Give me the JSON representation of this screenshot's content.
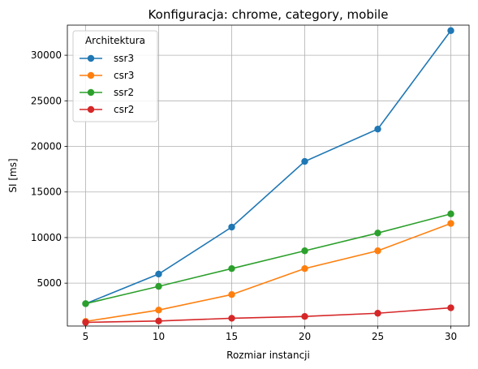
{
  "chart_data": {
    "type": "line",
    "title": "Konfiguracja: chrome, category, mobile",
    "xlabel": "Rozmiar instancji",
    "ylabel": "SI [ms]",
    "x": [
      5,
      10,
      15,
      20,
      25,
      30
    ],
    "xticks": [
      5,
      10,
      15,
      20,
      25,
      30
    ],
    "yticks": [
      5000,
      10000,
      15000,
      20000,
      25000,
      30000
    ],
    "xlim": [
      3.75,
      31.25
    ],
    "ylim": [
      300,
      33300
    ],
    "grid": true,
    "legend": {
      "title": "Architektura",
      "placement": "upper-left"
    },
    "series": [
      {
        "name": "ssr3",
        "color": "#1f77b4",
        "values": [
          2750,
          6000,
          11150,
          18350,
          21900,
          32700
        ]
      },
      {
        "name": "csr3",
        "color": "#ff7f0e",
        "values": [
          800,
          2050,
          3750,
          6600,
          8550,
          11550
        ]
      },
      {
        "name": "ssr2",
        "color": "#2ca02c",
        "values": [
          2750,
          4650,
          6600,
          8550,
          10500,
          12600
        ]
      },
      {
        "name": "csr2",
        "color": "#d62728",
        "values": [
          700,
          850,
          1150,
          1350,
          1700,
          2300
        ]
      }
    ]
  }
}
